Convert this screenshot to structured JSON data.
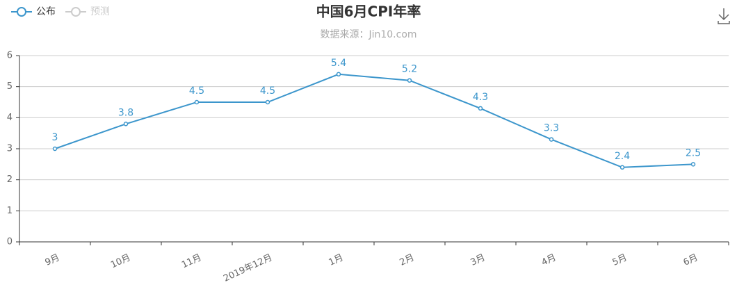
{
  "chart_data": {
    "type": "line",
    "title": "中国6月CPI年率",
    "subtitle": "数据来源：Jin10.com",
    "categories": [
      "9月",
      "10月",
      "11月",
      "2019年12月",
      "1月",
      "2月",
      "3月",
      "4月",
      "5月",
      "6月"
    ],
    "series": [
      {
        "name": "公布",
        "color": "#3c96cc",
        "values": [
          3,
          3.8,
          4.5,
          4.5,
          5.4,
          5.2,
          4.3,
          3.3,
          2.4,
          2.5
        ]
      },
      {
        "name": "预测",
        "color": "#cccccc",
        "values": [
          null,
          null,
          null,
          null,
          null,
          null,
          null,
          null,
          null,
          null
        ]
      }
    ],
    "ylim": [
      0,
      6
    ],
    "yticks": [
      0,
      1,
      2,
      3,
      4,
      5,
      6
    ],
    "grid": true,
    "legend": "top-left"
  }
}
